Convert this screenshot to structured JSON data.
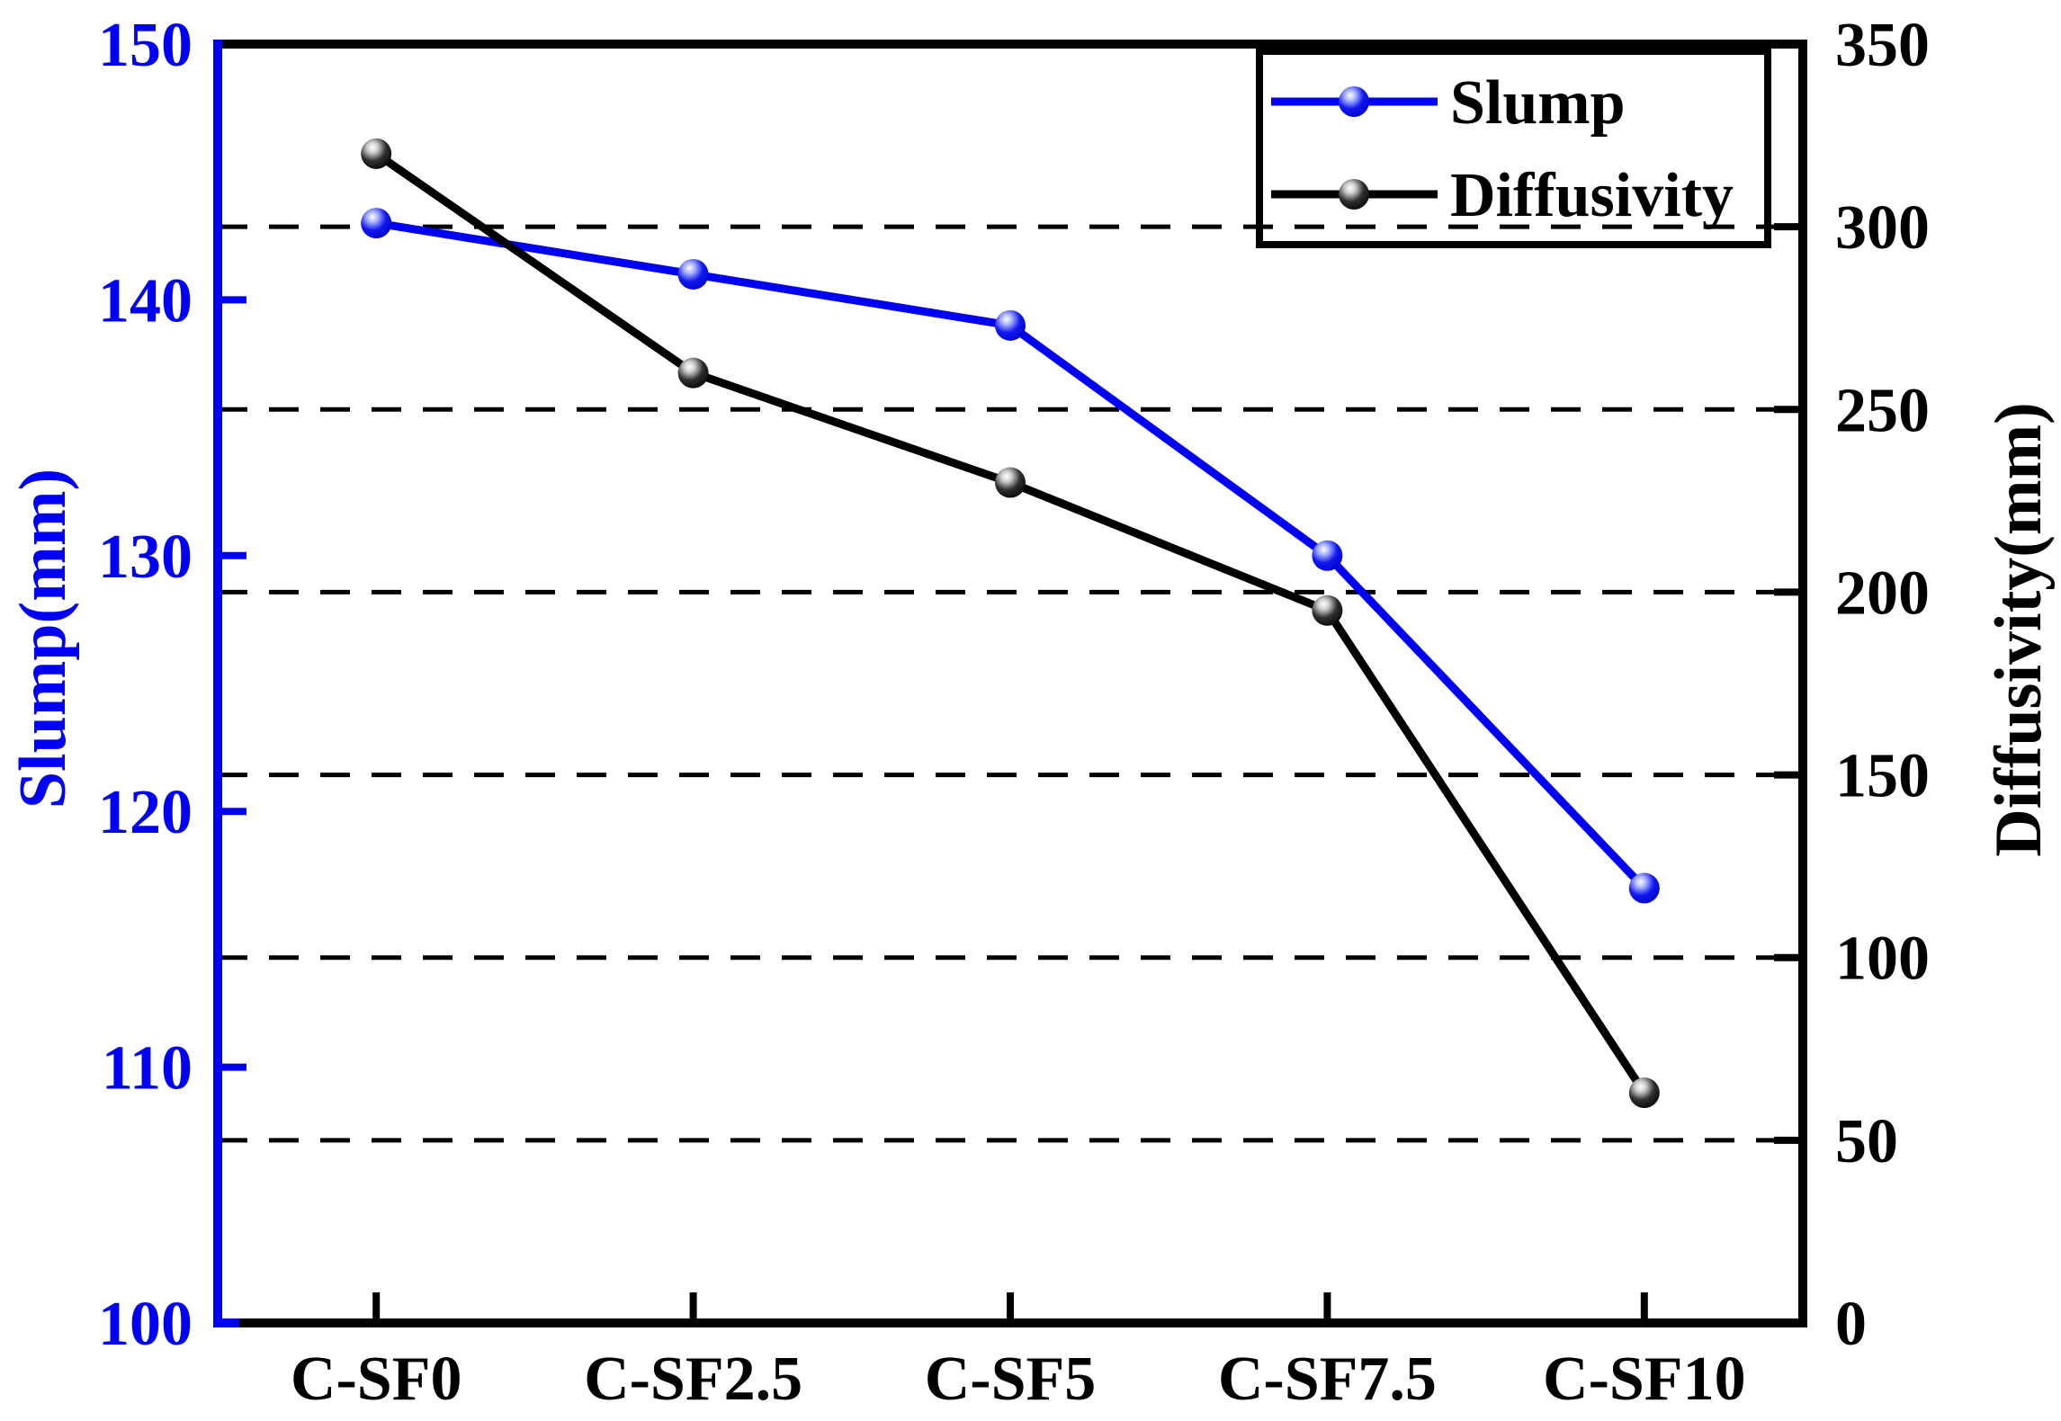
{
  "figure": {
    "background": "#ffffff"
  },
  "chart_data": {
    "type": "line",
    "categories": [
      "C-SF0",
      "C-SF2.5",
      "C-SF5",
      "C-SF7.5",
      "C-SF10"
    ],
    "series": [
      {
        "name": "Slump",
        "axis": "left",
        "color": "#0000f5",
        "values": [
          143,
          141,
          139,
          130,
          117
        ]
      },
      {
        "name": "Diffusivity",
        "axis": "right",
        "color": "#000000",
        "values": [
          320,
          260,
          230,
          195,
          63
        ]
      }
    ],
    "left_axis": {
      "label": "Slump(mm)",
      "min": 100,
      "max": 150,
      "ticks": [
        100,
        110,
        120,
        130,
        140,
        150
      ],
      "color": "#0000f5"
    },
    "right_axis": {
      "label": "Diffusivity(mm)",
      "min": 0,
      "max": 350,
      "ticks": [
        0,
        50,
        100,
        150,
        200,
        250,
        300,
        350
      ],
      "color": "#000000"
    },
    "gridlines": {
      "axis": "right",
      "values": [
        50,
        100,
        150,
        200,
        250,
        300
      ],
      "style": "dashed",
      "color": "#000000"
    },
    "legend": {
      "position": "top-right",
      "entries": [
        "Slump",
        "Diffusivity"
      ]
    }
  }
}
